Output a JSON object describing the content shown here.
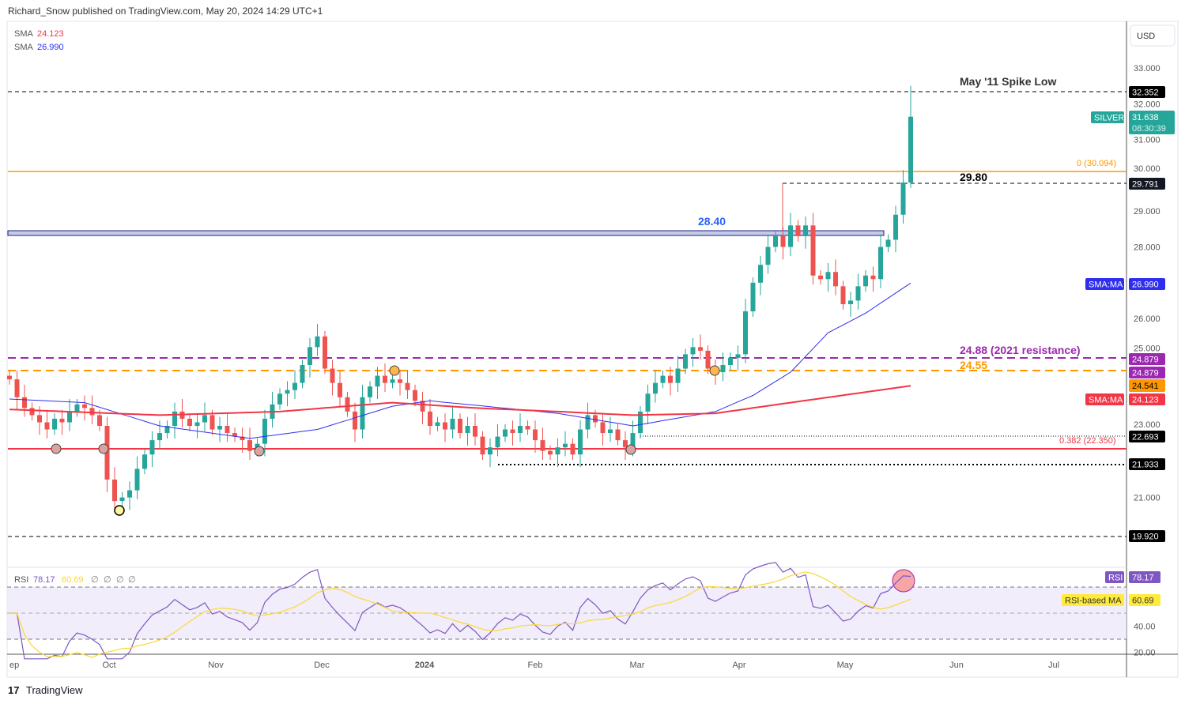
{
  "header": {
    "published": "Richard_Snow published on TradingView.com, May 20, 2024 14:29 UTC+1"
  },
  "legend": {
    "sma1_label": "SMA",
    "sma1_value": "24.123",
    "sma2_label": "SMA",
    "sma2_value": "26.990"
  },
  "axis": {
    "currency": "USD",
    "price_ticks": [
      "33.000",
      "32.000",
      "31.000",
      "30.000",
      "29.000",
      "28.000",
      "26.000",
      "25.000",
      "23.000",
      "21.000"
    ],
    "time_ticks": [
      "ep",
      "Oct",
      "Nov",
      "Dec",
      "2024",
      "Feb",
      "Mar",
      "Apr",
      "May",
      "Jun",
      "Jul"
    ],
    "rsi_ticks": [
      "40.00",
      "20.00"
    ]
  },
  "badges": {
    "spike": "32.352",
    "symbol": "SILVER",
    "last": "31.638",
    "countdown": "08:30:39",
    "level2980": "29.791",
    "sma_blue_tag": "SMA:MA",
    "sma_blue": "26.990",
    "purple1": "24.879",
    "purple2": "24.879",
    "orange": "24.541",
    "sma_red_tag": "SMA:MA",
    "sma_red": "24.123",
    "dotted1": "22.693",
    "dotted2": "21.933",
    "low": "19.920",
    "rsi_tag": "RSI",
    "rsi": "78.17",
    "rsima_tag": "RSI-based MA",
    "rsima": "60.69"
  },
  "annotations": {
    "spike_low": "May '11 Spike Low",
    "fib0": "0 (30.094)",
    "l2980": "29.80",
    "l2840": "28.40",
    "l2488": "24.88 (2021 resistance)",
    "l2455": "24.55",
    "fib382": "0.382 (22.350)"
  },
  "rsi_legend": {
    "label": "RSI",
    "value": "78.17",
    "ma": "60.69",
    "extra": [
      "∅",
      "∅",
      "∅",
      "∅"
    ]
  },
  "footer": {
    "brand": "TradingView"
  },
  "colors": {
    "up": "#26a69a",
    "down": "#ef5350",
    "sma_blue": "#2e2ef0",
    "sma_red": "#f23645",
    "purple": "#9c27b0",
    "orange": "#ff9800",
    "rsi": "#7e57c2",
    "rsi_ma": "#fdd835"
  },
  "chart_data": {
    "type": "candlestick",
    "title": "SILVER (USD), daily",
    "ylim": [
      19.5,
      33.5
    ],
    "levels": [
      32.352,
      30.094,
      29.791,
      28.4,
      24.879,
      24.55,
      22.693,
      22.35,
      21.933,
      19.92
    ],
    "closes": [
      24.3,
      23.8,
      23.5,
      23.3,
      23.1,
      22.9,
      23.2,
      23.1,
      23.4,
      23.6,
      23.5,
      23.3,
      23.0,
      21.5,
      20.9,
      21.0,
      21.2,
      21.8,
      22.2,
      22.6,
      22.8,
      23.0,
      23.4,
      23.2,
      23.0,
      23.1,
      23.3,
      22.9,
      23.0,
      22.8,
      22.7,
      22.6,
      22.3,
      22.5,
      23.2,
      23.6,
      23.9,
      24.0,
      24.2,
      24.7,
      25.2,
      25.5,
      24.6,
      24.2,
      23.8,
      23.4,
      22.9,
      23.8,
      24.1,
      24.4,
      24.2,
      24.3,
      24.2,
      24.0,
      23.7,
      23.4,
      23.0,
      23.1,
      22.9,
      23.2,
      22.8,
      23.0,
      22.7,
      22.2,
      22.4,
      22.7,
      22.9,
      22.8,
      23.0,
      22.9,
      22.6,
      22.3,
      22.2,
      22.4,
      22.5,
      22.2,
      22.9,
      23.3,
      23.1,
      22.8,
      22.9,
      22.6,
      22.4,
      22.8,
      23.4,
      23.9,
      24.2,
      24.4,
      24.2,
      24.6,
      25.0,
      25.2,
      25.1,
      24.6,
      24.5,
      24.7,
      24.9,
      25.0,
      26.2,
      27.0,
      27.5,
      28.0,
      28.3,
      28.0,
      28.6,
      28.3,
      28.6,
      27.2,
      27.1,
      27.3,
      26.9,
      26.4,
      26.5,
      26.9,
      27.2,
      27.1,
      28.0,
      28.2,
      28.9,
      29.8,
      31.638
    ],
    "sma50": [
      [
        0,
        23.75
      ],
      [
        10,
        23.65
      ],
      [
        20,
        23.0
      ],
      [
        32,
        22.65
      ],
      [
        41,
        22.9
      ],
      [
        51,
        23.55
      ],
      [
        56,
        23.7
      ],
      [
        73,
        23.35
      ],
      [
        83,
        23.0
      ],
      [
        94,
        23.4
      ],
      [
        99,
        23.85
      ],
      [
        104,
        24.5
      ],
      [
        109,
        25.6
      ],
      [
        114,
        26.15
      ],
      [
        120,
        26.99
      ]
    ],
    "sma200": [
      [
        0,
        23.46
      ],
      [
        20,
        23.3
      ],
      [
        36,
        23.4
      ],
      [
        51,
        23.65
      ],
      [
        62,
        23.5
      ],
      [
        73,
        23.4
      ],
      [
        83,
        23.3
      ],
      [
        94,
        23.35
      ],
      [
        104,
        23.65
      ],
      [
        120,
        24.12
      ]
    ],
    "rsi_last": 78.17,
    "rsi_ma_last": 60.69
  }
}
